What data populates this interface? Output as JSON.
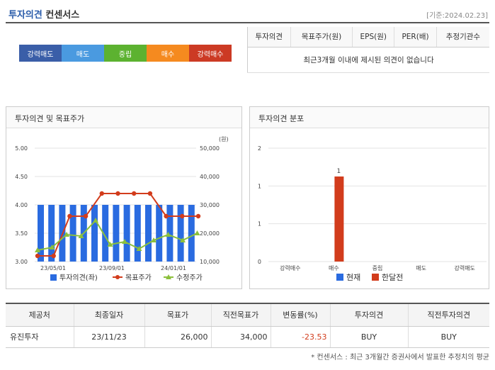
{
  "header": {
    "title_part1": "투자의견",
    "title_part2": "컨센서스",
    "date": "[기준:2024.02.23]"
  },
  "opinion_buttons": [
    {
      "label": "강력매도",
      "color": "#3a5ea8"
    },
    {
      "label": "매도",
      "color": "#4a9ae0"
    },
    {
      "label": "중립",
      "color": "#5cb230"
    },
    {
      "label": "매수",
      "color": "#f58a1f"
    },
    {
      "label": "강력매수",
      "color": "#cc3a24"
    }
  ],
  "consensus_table": {
    "headers": [
      "투자의견",
      "목표주가(원)",
      "EPS(원)",
      "PER(배)",
      "추정기관수"
    ],
    "empty_message": "최근3개월 이내에 제시된 의견이 없습니다"
  },
  "panels": {
    "left_title": "투자의견 및 목표주가",
    "right_title": "투자의견 분포"
  },
  "chart_data": [
    {
      "type": "bar",
      "left_axis_ticks": [
        "5.00",
        "4.50",
        "4.00",
        "3.50",
        "3.00"
      ],
      "right_axis_ticks": [
        "50,000",
        "40,000",
        "30,000",
        "20,000",
        "10,000"
      ],
      "right_unit": "(원)",
      "x_tick_labels": [
        "23/05/01",
        "23/09/01",
        "24/01/01"
      ],
      "ylim_left": [
        3.0,
        5.0
      ],
      "ylim_right": [
        10000,
        50000
      ],
      "opinion_values": [
        4,
        4,
        4,
        4,
        4,
        4,
        4,
        4,
        4,
        4,
        4,
        4,
        4,
        4,
        4
      ],
      "target_price": [
        12000,
        12000,
        26000,
        26000,
        34000,
        34000,
        34000,
        34000,
        26000,
        26000,
        26000
      ],
      "stock_price": [
        14000,
        15000,
        19500,
        19000,
        24500,
        16000,
        17000,
        14500,
        17500,
        19500,
        17500,
        20000
      ],
      "legend": [
        "투자의견(좌)",
        "목표주가",
        "수정주가"
      ],
      "colors": {
        "opinion": "#2a6be0",
        "target": "#d23c1c",
        "price": "#8cc03c"
      }
    },
    {
      "type": "bar",
      "categories": [
        "강력매수",
        "매수",
        "중립",
        "매도",
        "강력매도"
      ],
      "series": [
        {
          "name": "현재",
          "values": [
            0,
            0,
            0,
            0,
            0
          ]
        },
        {
          "name": "한달전",
          "values": [
            0,
            1,
            0,
            0,
            0
          ]
        }
      ],
      "y_ticks": [
        "2",
        "1",
        "1",
        "0"
      ],
      "ylim": [
        0,
        2
      ],
      "data_label": "1",
      "colors": {
        "current": "#2a6be0",
        "month_ago": "#d23c1c"
      }
    }
  ],
  "bottom_table": {
    "headers": [
      "제공처",
      "최종일자",
      "목표가",
      "직전목표가",
      "변동률(%)",
      "투자의견",
      "직전투자의견"
    ],
    "rows": [
      [
        "유진투자",
        "23/11/23",
        "26,000",
        "34,000",
        "-23.53",
        "BUY",
        "BUY"
      ]
    ]
  },
  "footnote": "* 컨센서스 : 최근 3개월간 증권사에서 발표한 추정치의 평균"
}
